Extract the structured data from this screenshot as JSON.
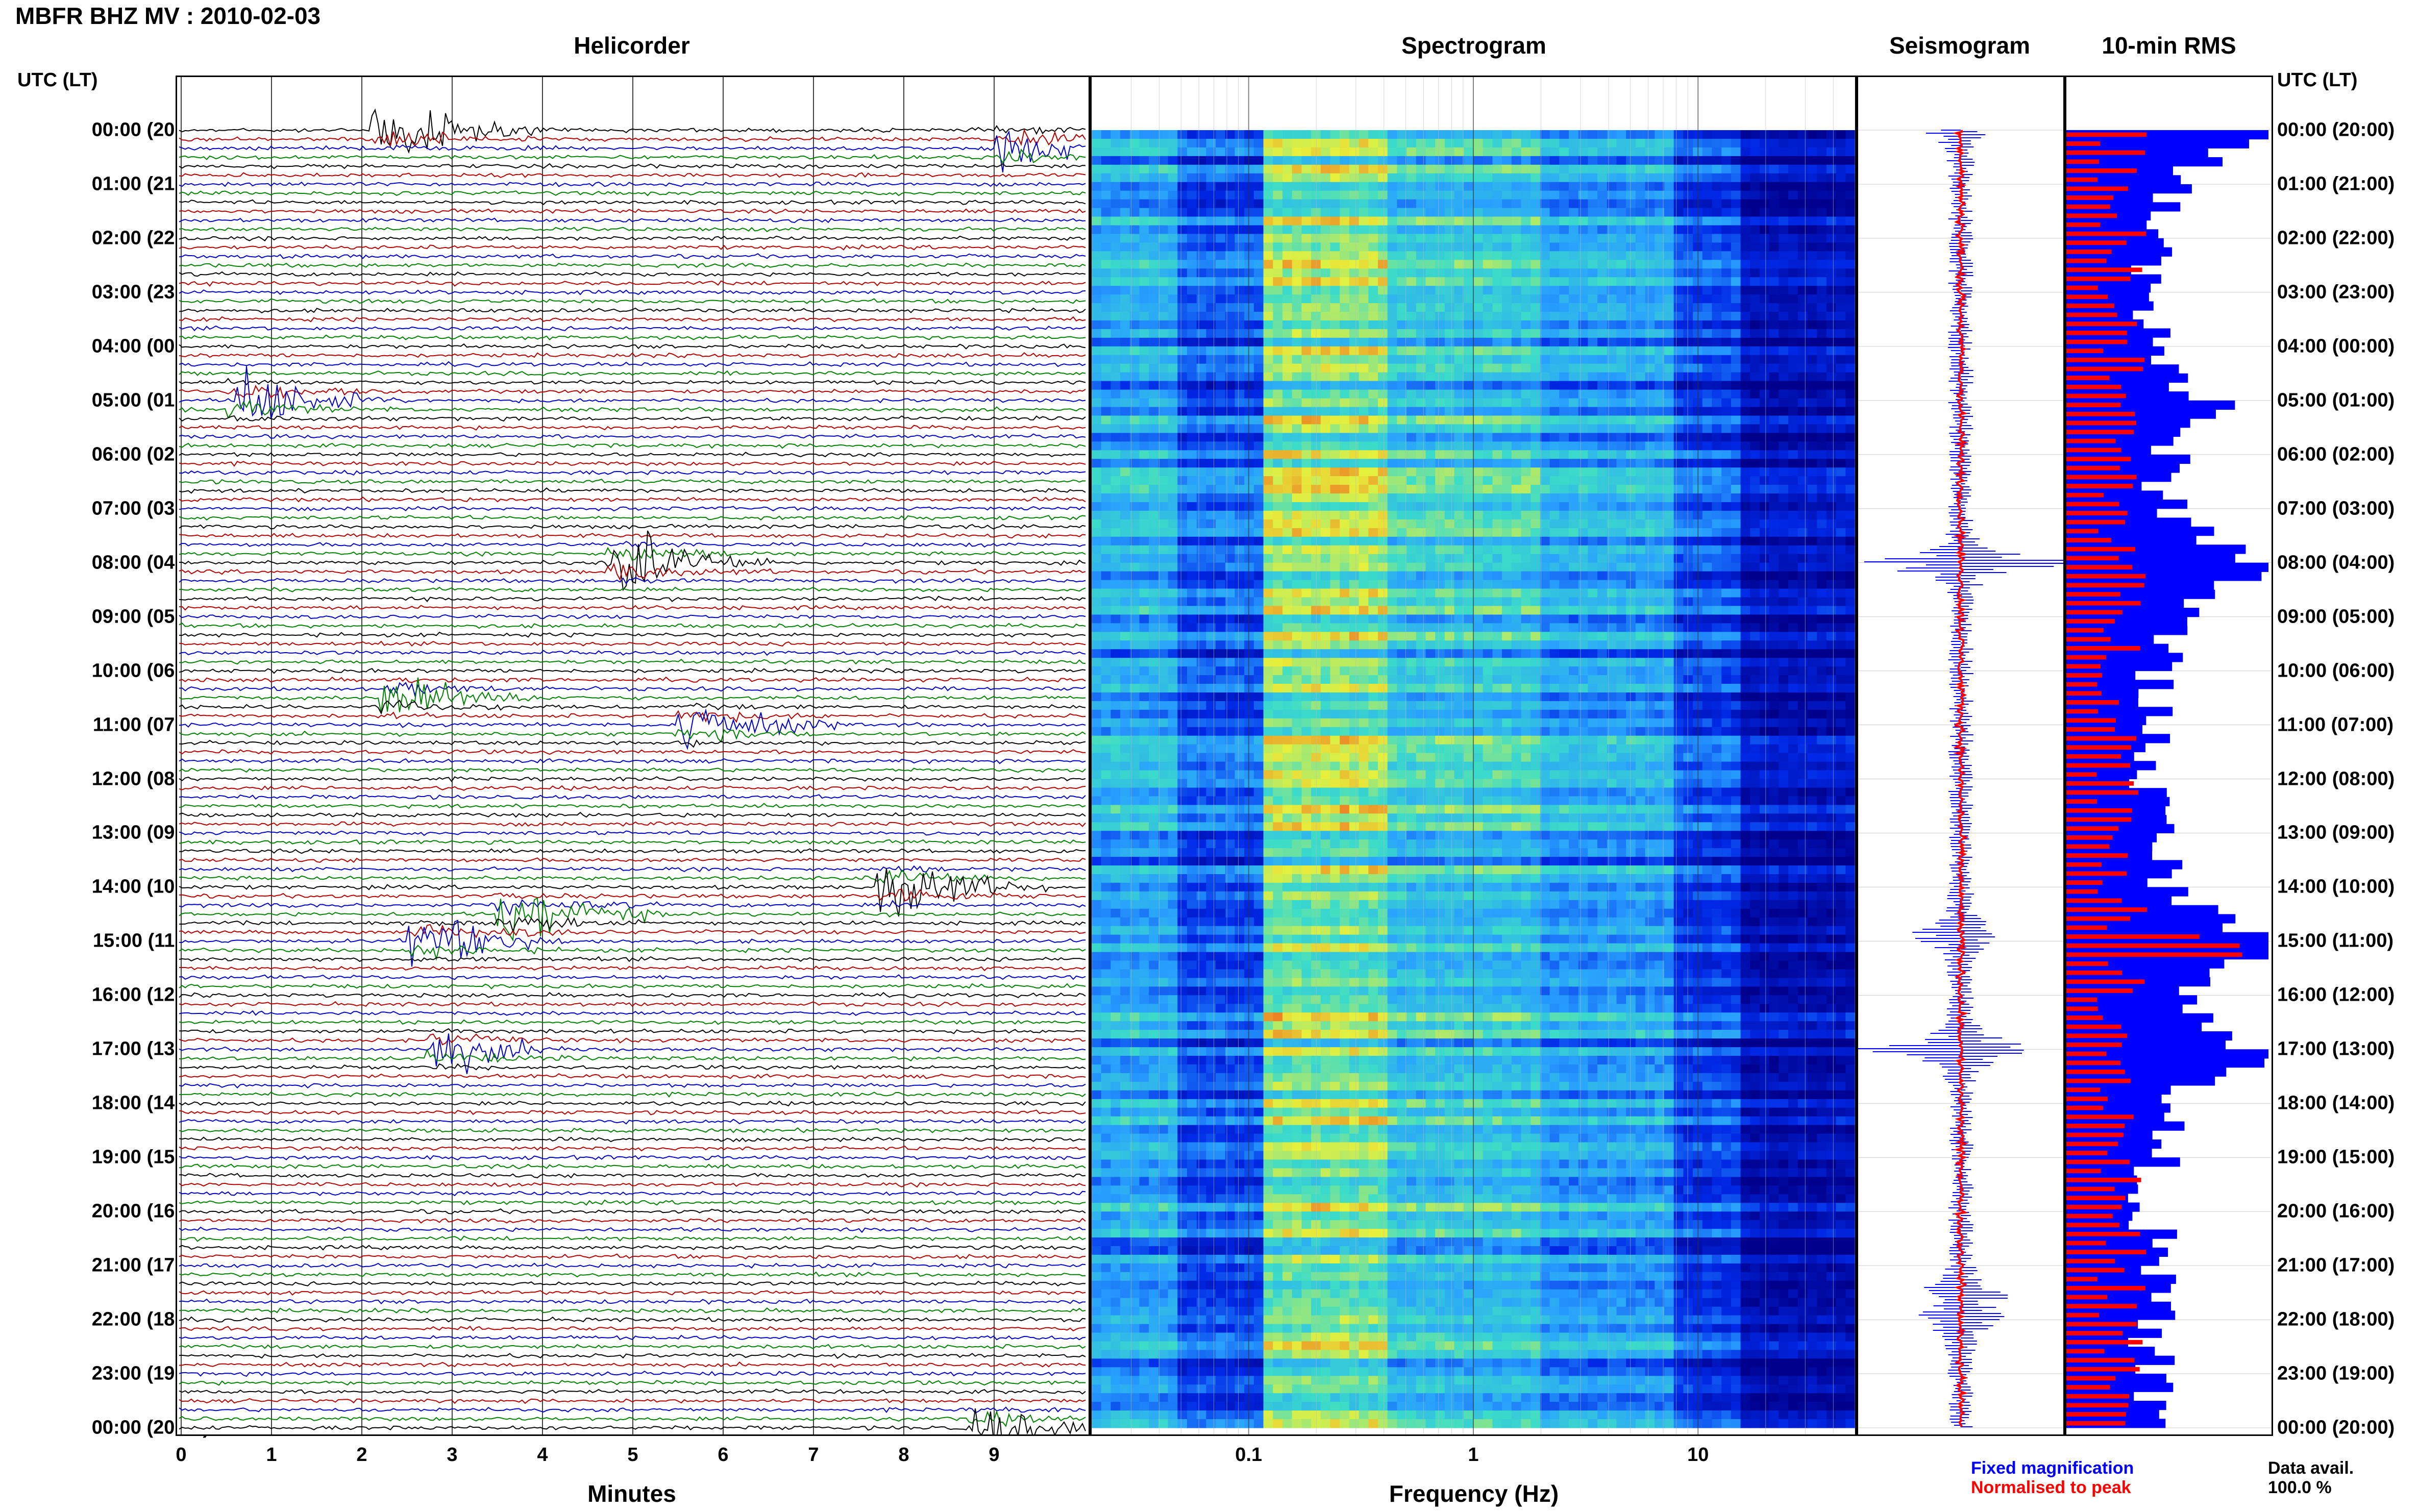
{
  "header": {
    "title": "MBFR BHZ MV : 2010-02-03"
  },
  "panels": {
    "helicorder": "Helicorder",
    "spectrogram": "Spectrogram",
    "seismogram": "Seismogram",
    "rms": "10-min RMS"
  },
  "time_axis": {
    "header_left": "UTC (LT)",
    "header_right": "UTC (LT)",
    "labels": [
      "00:00 (20:00)",
      "01:00 (21:00)",
      "02:00 (22:00)",
      "03:00 (23:00)",
      "04:00 (00:00)",
      "05:00 (01:00)",
      "06:00 (02:00)",
      "07:00 (03:00)",
      "08:00 (04:00)",
      "09:00 (05:00)",
      "10:00 (06:00)",
      "11:00 (07:00)",
      "12:00 (08:00)",
      "13:00 (09:00)",
      "14:00 (10:00)",
      "15:00 (11:00)",
      "16:00 (12:00)",
      "17:00 (13:00)",
      "18:00 (14:00)",
      "19:00 (15:00)",
      "20:00 (16:00)",
      "21:00 (17:00)",
      "22:00 (18:00)",
      "23:00 (19:00)",
      "00:00 (20:00)"
    ]
  },
  "helicorder_axis": {
    "xlabel": "Minutes",
    "ticks": [
      "0",
      "1",
      "2",
      "3",
      "4",
      "5",
      "6",
      "7",
      "8",
      "9"
    ]
  },
  "spectrogram_axis": {
    "xlabel": "Frequency (Hz)",
    "ticks": [
      "0.1",
      "1",
      "10"
    ]
  },
  "legend": {
    "fixed": "Fixed magnification",
    "normalised": "Normalised to peak"
  },
  "availability": {
    "label": "Data avail.",
    "value": "100.0 %"
  },
  "colors": {
    "trace_cycle": [
      "#000000",
      "#b00000",
      "#0000c0",
      "#008000"
    ],
    "fixed": "#0000ff",
    "normalised": "#ff0000"
  },
  "chart_data": [
    {
      "type": "line",
      "title": "Helicorder",
      "xlabel": "Minutes",
      "xlim": [
        0,
        10
      ],
      "rows_per_hour": 6,
      "hours": 24,
      "events": [
        {
          "hour": 0.0,
          "minute": 2.4,
          "amp": 1.0
        },
        {
          "hour": 0.3,
          "minute": 9.3,
          "amp": 0.8
        },
        {
          "hour": 5.0,
          "minute": 0.8,
          "amp": 0.9
        },
        {
          "hour": 8.0,
          "minute": 5.0,
          "amp": 1.0
        },
        {
          "hour": 10.5,
          "minute": 2.5,
          "amp": 0.7
        },
        {
          "hour": 11.0,
          "minute": 5.8,
          "amp": 0.7
        },
        {
          "hour": 14.0,
          "minute": 8.0,
          "amp": 1.0
        },
        {
          "hour": 14.5,
          "minute": 3.8,
          "amp": 0.9
        },
        {
          "hour": 15.0,
          "minute": 2.8,
          "amp": 0.8
        },
        {
          "hour": 17.0,
          "minute": 3.0,
          "amp": 0.6
        },
        {
          "hour": 24.0,
          "minute": 9.0,
          "amp": 0.6
        }
      ]
    },
    {
      "type": "heatmap",
      "title": "Spectrogram",
      "xlabel": "Frequency (Hz)",
      "xscale": "log",
      "xlim": [
        0.02,
        50
      ],
      "ylim_hours": [
        0,
        24
      ]
    },
    {
      "type": "line",
      "title": "Seismogram",
      "series": [
        {
          "name": "Fixed magnification",
          "color": "#0000ff"
        },
        {
          "name": "Normalised to peak",
          "color": "#ff0000"
        }
      ]
    },
    {
      "type": "bar",
      "title": "10-min RMS",
      "series": [
        {
          "name": "Fixed magnification",
          "color": "#0000ff"
        },
        {
          "name": "Normalised to peak",
          "color": "#ff0000"
        }
      ]
    }
  ]
}
